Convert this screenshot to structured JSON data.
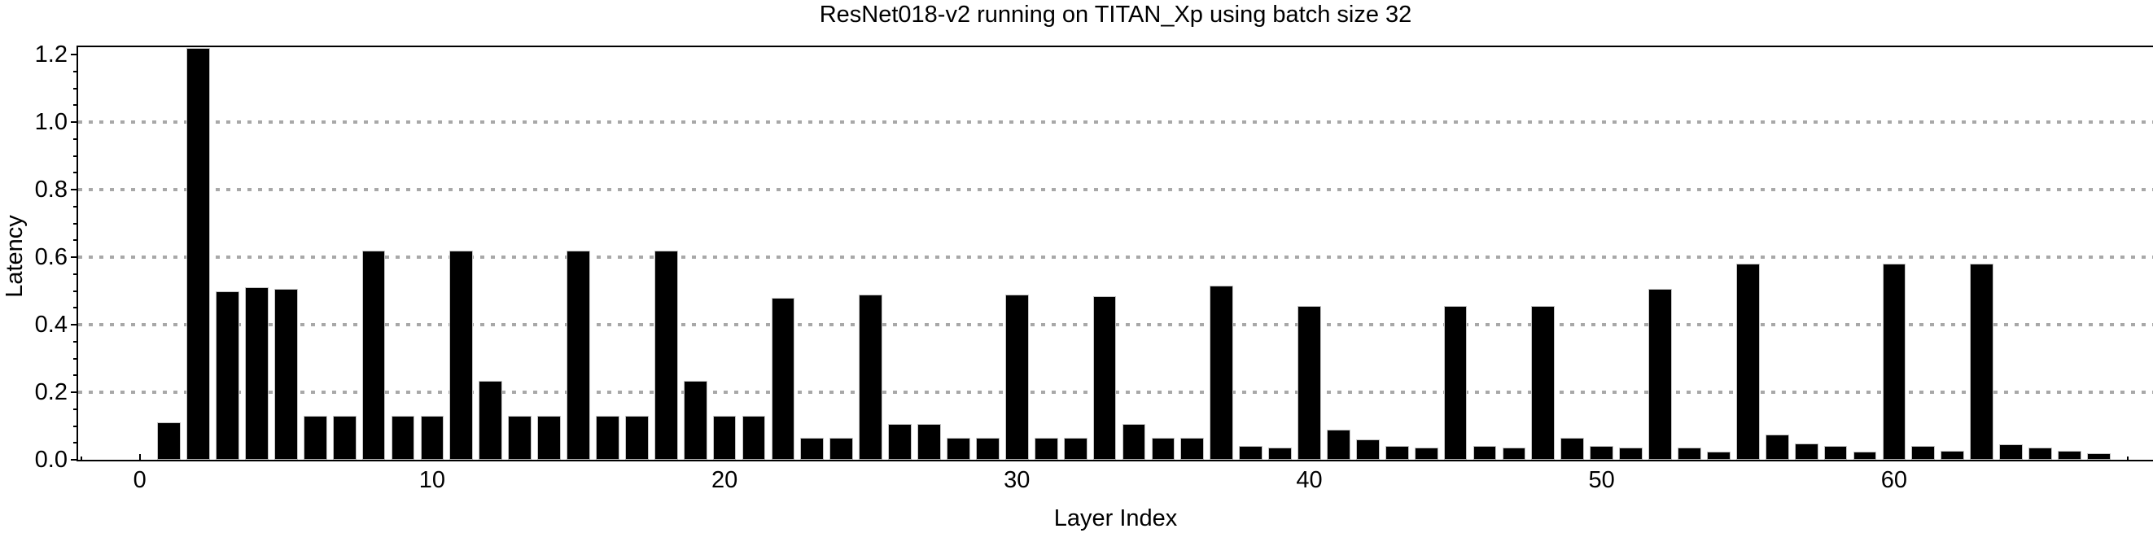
{
  "chart_data": {
    "type": "bar",
    "title": "ResNet018-v2 running on TITAN_Xp using batch size 32",
    "xlabel": "Layer Index",
    "ylabel": "Latency",
    "layer_indices": [
      1,
      2,
      3,
      4,
      5,
      6,
      7,
      8,
      9,
      10,
      11,
      12,
      13,
      14,
      15,
      16,
      17,
      18,
      19,
      20,
      21,
      22,
      23,
      24,
      25,
      26,
      27,
      28,
      29,
      30,
      31,
      32,
      33,
      34,
      35,
      36,
      37,
      38,
      39,
      40,
      41,
      42,
      43,
      44,
      45,
      46,
      47,
      48,
      49,
      50,
      51,
      52,
      53,
      54,
      55,
      56,
      57,
      58,
      59,
      60,
      61,
      62,
      63,
      64,
      65,
      66,
      67
    ],
    "values": [
      0.11,
      1.22,
      0.5,
      0.51,
      0.505,
      0.13,
      0.13,
      0.62,
      0.13,
      0.13,
      0.62,
      0.235,
      0.13,
      0.13,
      0.62,
      0.13,
      0.13,
      0.62,
      0.235,
      0.13,
      0.13,
      0.48,
      0.065,
      0.065,
      0.49,
      0.105,
      0.105,
      0.065,
      0.065,
      0.49,
      0.065,
      0.065,
      0.485,
      0.105,
      0.065,
      0.065,
      0.515,
      0.04,
      0.035,
      0.455,
      0.09,
      0.06,
      0.04,
      0.035,
      0.455,
      0.04,
      0.035,
      0.455,
      0.065,
      0.04,
      0.037,
      0.505,
      0.035,
      0.025,
      0.58,
      0.075,
      0.048,
      0.04,
      0.025,
      0.58,
      0.04,
      0.026,
      0.58,
      0.046,
      0.037,
      0.026,
      0.019
    ],
    "xlim": [
      -2.163,
      68.9
    ],
    "ylim": [
      0,
      1.222
    ],
    "xticks": [
      0,
      10,
      20,
      30,
      40,
      50,
      60
    ],
    "yticks": [
      "0.0",
      "0.2",
      "0.4",
      "0.6",
      "0.8",
      "1.0",
      "1.2"
    ],
    "grid_values": [
      0.2,
      0.4,
      0.6,
      0.8,
      1.0
    ],
    "x_minor_tick_step": 2,
    "y_minor_tick_step": 0.05,
    "grid_style": "horizontal dotted",
    "legend": "none",
    "bar_color": "#000000",
    "bar_edge_color": "#c4c4c4",
    "grid_color": "#a8a8a8",
    "axis_color": "#000000",
    "background_color": "#ffffff",
    "note": "Bar at layer index 2 reaches the top of the plot area (clipped at the y-limit)."
  }
}
